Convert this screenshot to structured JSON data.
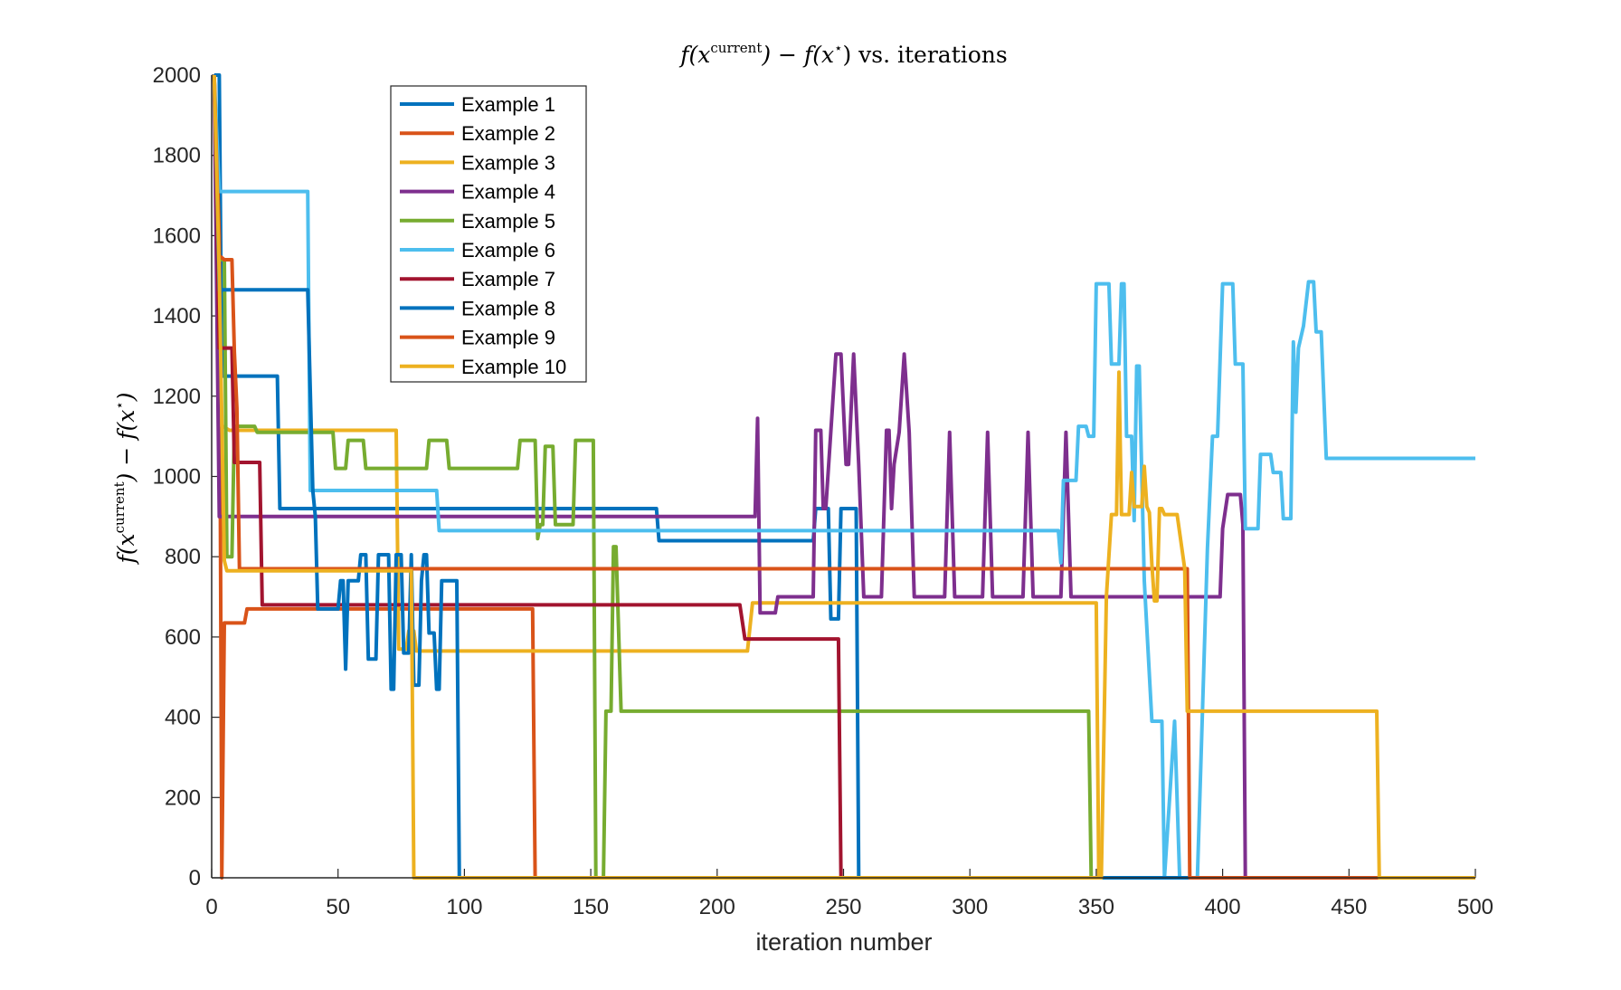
{
  "chart_data": {
    "type": "line",
    "title_parts": {
      "f1": "f(",
      "x1": "x",
      "sup1": "current",
      "mid": ") − f(",
      "x2": "x",
      "sup2": "⋆",
      "tail": ") vs. iterations"
    },
    "xlabel": "iteration number",
    "ylabel_parts": {
      "f1": "f(",
      "x1": "x",
      "sup1": "current",
      "mid": ") − f(",
      "x2": "x",
      "sup2": "⋆",
      "tail": ")"
    },
    "xlim": [
      0,
      500
    ],
    "ylim": [
      0,
      2000
    ],
    "xticks": [
      0,
      50,
      100,
      150,
      200,
      250,
      300,
      350,
      400,
      450,
      500
    ],
    "yticks": [
      0,
      200,
      400,
      600,
      800,
      1000,
      1200,
      1400,
      1600,
      1800,
      2000
    ],
    "grid": false,
    "legend_position": "top-left-inside",
    "series": [
      {
        "name": "Example 1",
        "color": "#0072BD",
        "points": [
          [
            1,
            2000
          ],
          [
            3,
            2000
          ],
          [
            4,
            1250
          ],
          [
            26,
            1250
          ],
          [
            27,
            920
          ],
          [
            40,
            920
          ],
          [
            41,
            920
          ],
          [
            176,
            920
          ],
          [
            177,
            840
          ],
          [
            238,
            840
          ],
          [
            239,
            920
          ],
          [
            244,
            920
          ],
          [
            245,
            645
          ],
          [
            248,
            645
          ],
          [
            249,
            920
          ],
          [
            255,
            920
          ],
          [
            256,
            0
          ],
          [
            500,
            0
          ]
        ]
      },
      {
        "name": "Example 2",
        "color": "#D95319",
        "points": [
          [
            1,
            2000
          ],
          [
            3,
            1600
          ],
          [
            4,
            0
          ],
          [
            5,
            635
          ],
          [
            13,
            635
          ],
          [
            14,
            670
          ],
          [
            127,
            670
          ],
          [
            128,
            0
          ],
          [
            500,
            0
          ]
        ]
      },
      {
        "name": "Example 3",
        "color": "#EDB120",
        "points": [
          [
            1,
            2000
          ],
          [
            3,
            1130
          ],
          [
            7,
            1115
          ],
          [
            73,
            1115
          ],
          [
            74,
            570
          ],
          [
            77,
            570
          ],
          [
            78,
            615
          ],
          [
            80,
            615
          ],
          [
            81,
            565
          ],
          [
            212,
            565
          ],
          [
            214,
            685
          ],
          [
            350,
            685
          ],
          [
            351,
            0
          ],
          [
            500,
            0
          ]
        ]
      },
      {
        "name": "Example 4",
        "color": "#7E2F8E",
        "points": [
          [
            1,
            2000
          ],
          [
            3,
            900
          ],
          [
            215,
            900
          ],
          [
            216,
            1145
          ],
          [
            217,
            660
          ],
          [
            223,
            660
          ],
          [
            224,
            700
          ],
          [
            238,
            700
          ],
          [
            239,
            1115
          ],
          [
            241,
            1115
          ],
          [
            242,
            920
          ],
          [
            243,
            920
          ],
          [
            247,
            1305
          ],
          [
            249,
            1305
          ],
          [
            251,
            1030
          ],
          [
            252,
            1030
          ],
          [
            254,
            1305
          ],
          [
            256,
            1030
          ],
          [
            258,
            700
          ],
          [
            265,
            700
          ],
          [
            267,
            1115
          ],
          [
            268,
            1115
          ],
          [
            269,
            920
          ],
          [
            270,
            1030
          ],
          [
            272,
            1110
          ],
          [
            274,
            1305
          ],
          [
            276,
            1110
          ],
          [
            278,
            700
          ],
          [
            290,
            700
          ],
          [
            292,
            1110
          ],
          [
            294,
            700
          ],
          [
            305,
            700
          ],
          [
            307,
            1110
          ],
          [
            309,
            700
          ],
          [
            321,
            700
          ],
          [
            323,
            1110
          ],
          [
            325,
            700
          ],
          [
            336,
            700
          ],
          [
            338,
            1110
          ],
          [
            340,
            700
          ],
          [
            346,
            700
          ],
          [
            347,
            700
          ],
          [
            384,
            700
          ],
          [
            385,
            700
          ],
          [
            399,
            700
          ],
          [
            400,
            870
          ],
          [
            402,
            955
          ],
          [
            407,
            955
          ],
          [
            408,
            880
          ],
          [
            409,
            0
          ],
          [
            500,
            0
          ]
        ]
      },
      {
        "name": "Example 5",
        "color": "#77AC30",
        "points": [
          [
            1,
            2000
          ],
          [
            3,
            1540
          ],
          [
            5,
            1540
          ],
          [
            6,
            800
          ],
          [
            8,
            800
          ],
          [
            9,
            1125
          ],
          [
            17,
            1125
          ],
          [
            18,
            1110
          ],
          [
            48,
            1110
          ],
          [
            49,
            1020
          ],
          [
            53,
            1020
          ],
          [
            54,
            1090
          ],
          [
            60,
            1090
          ],
          [
            61,
            1020
          ],
          [
            85,
            1020
          ],
          [
            86,
            1090
          ],
          [
            93,
            1090
          ],
          [
            94,
            1020
          ],
          [
            121,
            1020
          ],
          [
            122,
            1090
          ],
          [
            128,
            1090
          ],
          [
            129,
            845
          ],
          [
            130,
            880
          ],
          [
            131,
            880
          ],
          [
            132,
            1075
          ],
          [
            135,
            1075
          ],
          [
            136,
            880
          ],
          [
            143,
            880
          ],
          [
            144,
            1090
          ],
          [
            151,
            1090
          ],
          [
            152,
            0
          ],
          [
            155,
            0
          ],
          [
            156,
            415
          ],
          [
            158,
            415
          ],
          [
            159,
            825
          ],
          [
            160,
            825
          ],
          [
            162,
            415
          ],
          [
            347,
            415
          ],
          [
            348,
            0
          ],
          [
            500,
            0
          ]
        ]
      },
      {
        "name": "Example 6",
        "color": "#4DBEEE",
        "points": [
          [
            1,
            2000
          ],
          [
            3,
            1710
          ],
          [
            38,
            1710
          ],
          [
            39,
            965
          ],
          [
            89,
            965
          ],
          [
            90,
            865
          ],
          [
            335,
            865
          ],
          [
            336,
            785
          ],
          [
            337,
            990
          ],
          [
            342,
            990
          ],
          [
            343,
            1125
          ],
          [
            346,
            1125
          ],
          [
            347,
            1100
          ],
          [
            349,
            1100
          ],
          [
            350,
            1480
          ],
          [
            355,
            1480
          ],
          [
            356,
            1280
          ],
          [
            359,
            1280
          ],
          [
            360,
            1480
          ],
          [
            361,
            1480
          ],
          [
            362,
            1100
          ],
          [
            364,
            1100
          ],
          [
            365,
            890
          ],
          [
            366,
            1275
          ],
          [
            367,
            1275
          ],
          [
            369,
            740
          ],
          [
            372,
            390
          ],
          [
            376,
            390
          ],
          [
            377,
            0
          ],
          [
            381,
            390
          ],
          [
            383,
            0
          ],
          [
            390,
            0
          ],
          [
            394,
            820
          ],
          [
            396,
            1100
          ],
          [
            398,
            1100
          ],
          [
            400,
            1480
          ],
          [
            404,
            1480
          ],
          [
            405,
            1280
          ],
          [
            408,
            1280
          ],
          [
            409,
            870
          ],
          [
            414,
            870
          ],
          [
            415,
            1055
          ],
          [
            419,
            1055
          ],
          [
            420,
            1010
          ],
          [
            423,
            1010
          ],
          [
            424,
            895
          ],
          [
            427,
            895
          ],
          [
            428,
            1335
          ],
          [
            429,
            1160
          ],
          [
            430,
            1320
          ],
          [
            432,
            1375
          ],
          [
            434,
            1485
          ],
          [
            436,
            1485
          ],
          [
            437,
            1360
          ],
          [
            439,
            1360
          ],
          [
            441,
            1045
          ],
          [
            500,
            1045
          ]
        ]
      },
      {
        "name": "Example 7",
        "color": "#A2142F",
        "points": [
          [
            1,
            2000
          ],
          [
            3,
            1320
          ],
          [
            8,
            1320
          ],
          [
            9,
            1035
          ],
          [
            19,
            1035
          ],
          [
            20,
            680
          ],
          [
            209,
            680
          ],
          [
            211,
            595
          ],
          [
            248,
            595
          ],
          [
            249,
            0
          ],
          [
            500,
            0
          ]
        ]
      },
      {
        "name": "Example 8",
        "color": "#0072BD",
        "points": [
          [
            1,
            2000
          ],
          [
            3,
            1465
          ],
          [
            38,
            1465
          ],
          [
            40,
            965
          ],
          [
            41,
            900
          ],
          [
            42,
            670
          ],
          [
            50,
            670
          ],
          [
            51,
            740
          ],
          [
            52,
            740
          ],
          [
            53,
            520
          ],
          [
            54,
            740
          ],
          [
            58,
            740
          ],
          [
            59,
            805
          ],
          [
            61,
            805
          ],
          [
            62,
            545
          ],
          [
            65,
            545
          ],
          [
            66,
            805
          ],
          [
            70,
            805
          ],
          [
            71,
            470
          ],
          [
            72,
            470
          ],
          [
            73,
            805
          ],
          [
            75,
            805
          ],
          [
            76,
            560
          ],
          [
            78,
            560
          ],
          [
            79,
            805
          ],
          [
            80,
            480
          ],
          [
            82,
            480
          ],
          [
            83,
            740
          ],
          [
            84,
            805
          ],
          [
            85,
            805
          ],
          [
            86,
            610
          ],
          [
            88,
            610
          ],
          [
            89,
            470
          ],
          [
            90,
            470
          ],
          [
            91,
            740
          ],
          [
            97,
            740
          ],
          [
            98,
            0
          ],
          [
            500,
            0
          ]
        ]
      },
      {
        "name": "Example 9",
        "color": "#D95319",
        "points": [
          [
            1,
            2000
          ],
          [
            3,
            1550
          ],
          [
            5,
            1540
          ],
          [
            8,
            1540
          ],
          [
            9,
            1310
          ],
          [
            10,
            1170
          ],
          [
            11,
            770
          ],
          [
            385,
            770
          ],
          [
            386,
            770
          ],
          [
            387,
            0
          ],
          [
            461,
            0
          ],
          [
            500,
            0
          ]
        ]
      },
      {
        "name": "Example 10",
        "color": "#EDB120",
        "points": [
          [
            1,
            2000
          ],
          [
            3,
            1500
          ],
          [
            5,
            790
          ],
          [
            6,
            765
          ],
          [
            79,
            765
          ],
          [
            80,
            0
          ],
          [
            352,
            0
          ],
          [
            354,
            700
          ],
          [
            356,
            905
          ],
          [
            358,
            905
          ],
          [
            359,
            1260
          ],
          [
            360,
            905
          ],
          [
            363,
            905
          ],
          [
            364,
            1010
          ],
          [
            365,
            925
          ],
          [
            368,
            925
          ],
          [
            369,
            1025
          ],
          [
            370,
            925
          ],
          [
            371,
            910
          ],
          [
            372,
            780
          ],
          [
            373,
            690
          ],
          [
            374,
            690
          ],
          [
            375,
            920
          ],
          [
            376,
            920
          ],
          [
            377,
            905
          ],
          [
            382,
            905
          ],
          [
            385,
            770
          ],
          [
            386,
            415
          ],
          [
            461,
            415
          ],
          [
            462,
            0
          ],
          [
            500,
            0
          ]
        ]
      }
    ]
  }
}
